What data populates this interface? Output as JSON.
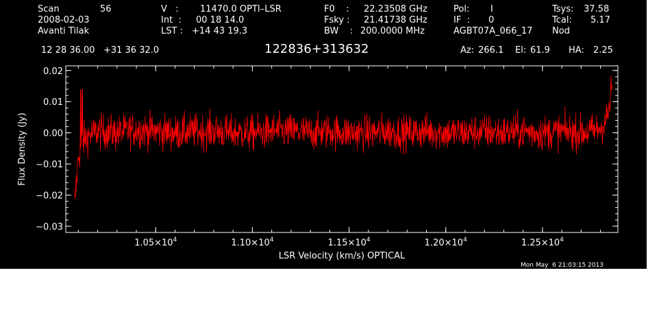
{
  "header": {
    "scan_label": "Scan",
    "scan_number": "56",
    "date": "2008-02-03",
    "observer": "Avanti Tilak",
    "velocity_label": "V   :",
    "velocity_value": "11470.0 OPTI–LSR",
    "int_label": "Int  :",
    "int_value": "00 18 14.0",
    "lst_label": "LST :",
    "lst_value": "+14 43 19.3",
    "f0_label": "F0    :",
    "f0_value": "22.23508 GHz",
    "fsky_label": "Fsky :",
    "fsky_value": "21.41738 GHz",
    "bw_label": "BW    :",
    "bw_value": "200.0000 MHz",
    "pol_label": "Pol:",
    "pol_value": "I",
    "if_label": "IF  :",
    "if_value": "0",
    "project": "AGBT07A_066_17",
    "tsys_label": "Tsys:",
    "tsys_value": "37.58",
    "tcal_label": "Tcal:",
    "tcal_value": "5.17",
    "mode": "Nod",
    "coords": "12 28 36.00   +31 36 32.0",
    "source": "122836+313632",
    "az_label": "Az:",
    "az_value": "266.1",
    "el_label": "El:",
    "el_value": "61.9",
    "ha_label": "HA:",
    "ha_value": "2.25"
  },
  "footer": {
    "timestamp": "Mon May  6 21:03:15 2013"
  },
  "colors": {
    "background": "#000000",
    "axes": "#ffffff",
    "spectrum": "#ff0000"
  },
  "chart_data": {
    "type": "line",
    "xlabel": "LSR Velocity (km/s) OPTICAL",
    "ylabel": "Flux Density (Jy)",
    "xlim": [
      10035,
      12890
    ],
    "ylim": [
      -0.032,
      0.0215
    ],
    "y_ticks": [
      {
        "value": 0.02,
        "label": "0.02"
      },
      {
        "value": 0.01,
        "label": "0.01"
      },
      {
        "value": 0.0,
        "label": "0.00"
      },
      {
        "value": -0.01,
        "label": "−0.01"
      },
      {
        "value": -0.02,
        "label": "−0.02"
      },
      {
        "value": -0.03,
        "label": "−0.03"
      }
    ],
    "y_minor_step": 0.002,
    "x_ticks": [
      {
        "value": 10500,
        "mantissa": "1.05×10",
        "exponent": "4"
      },
      {
        "value": 11000,
        "mantissa": "1.10×10",
        "exponent": "4"
      },
      {
        "value": 11500,
        "mantissa": "1.15×10",
        "exponent": "4"
      },
      {
        "value": 12000,
        "mantissa": "1.20×10",
        "exponent": "4"
      },
      {
        "value": 12500,
        "mantissa": "1.25×10",
        "exponent": "4"
      }
    ],
    "x_minor_step": 100,
    "grid": false,
    "legend": "none",
    "series": [
      {
        "x": [
          10080,
          10100,
          10120,
          10150,
          10200,
          10300,
          10400,
          10500,
          10600,
          10700,
          10800,
          10900,
          11000,
          11100,
          11200,
          11300,
          11400,
          11500,
          11600,
          11700,
          11800,
          11900,
          12000,
          12100,
          12200,
          12300,
          12400,
          12500,
          12600,
          12700,
          12760,
          12800,
          12820,
          12840,
          12850,
          12860
        ],
        "y": [
          -0.024,
          -0.008,
          -0.003,
          -0.001,
          0.0005,
          0.0,
          0.001,
          0.0005,
          0.0,
          0.0005,
          0.0005,
          0.0,
          0.0,
          0.0005,
          0.0005,
          0.0,
          0.0005,
          0.0,
          0.0,
          0.0005,
          0.0,
          0.0005,
          0.0,
          0.0,
          0.0005,
          0.0,
          0.0005,
          0.0,
          0.0005,
          0.0,
          0.0005,
          0.0015,
          0.003,
          0.006,
          0.01,
          0.016
        ],
        "noise_rms": 0.004
      }
    ]
  }
}
